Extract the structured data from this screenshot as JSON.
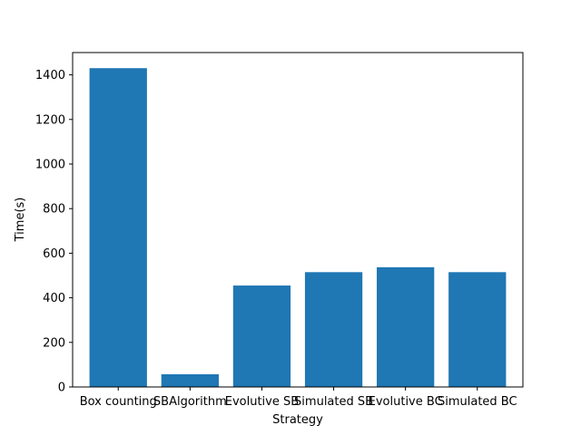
{
  "chart_data": {
    "type": "bar",
    "title": "",
    "xlabel": "Strategy",
    "ylabel": "Time(s)",
    "categories": [
      "Box counting",
      "SBAlgorithm",
      "Evolutive SB",
      "Simulated SB",
      "Evolutive BC",
      "Simulated BC"
    ],
    "values": [
      1430,
      57,
      455,
      515,
      537,
      515
    ],
    "ylim": [
      0,
      1500
    ],
    "yticks": [
      0,
      200,
      400,
      600,
      800,
      1000,
      1200,
      1400
    ],
    "grid": false,
    "bar_color": "#1f77b4"
  }
}
